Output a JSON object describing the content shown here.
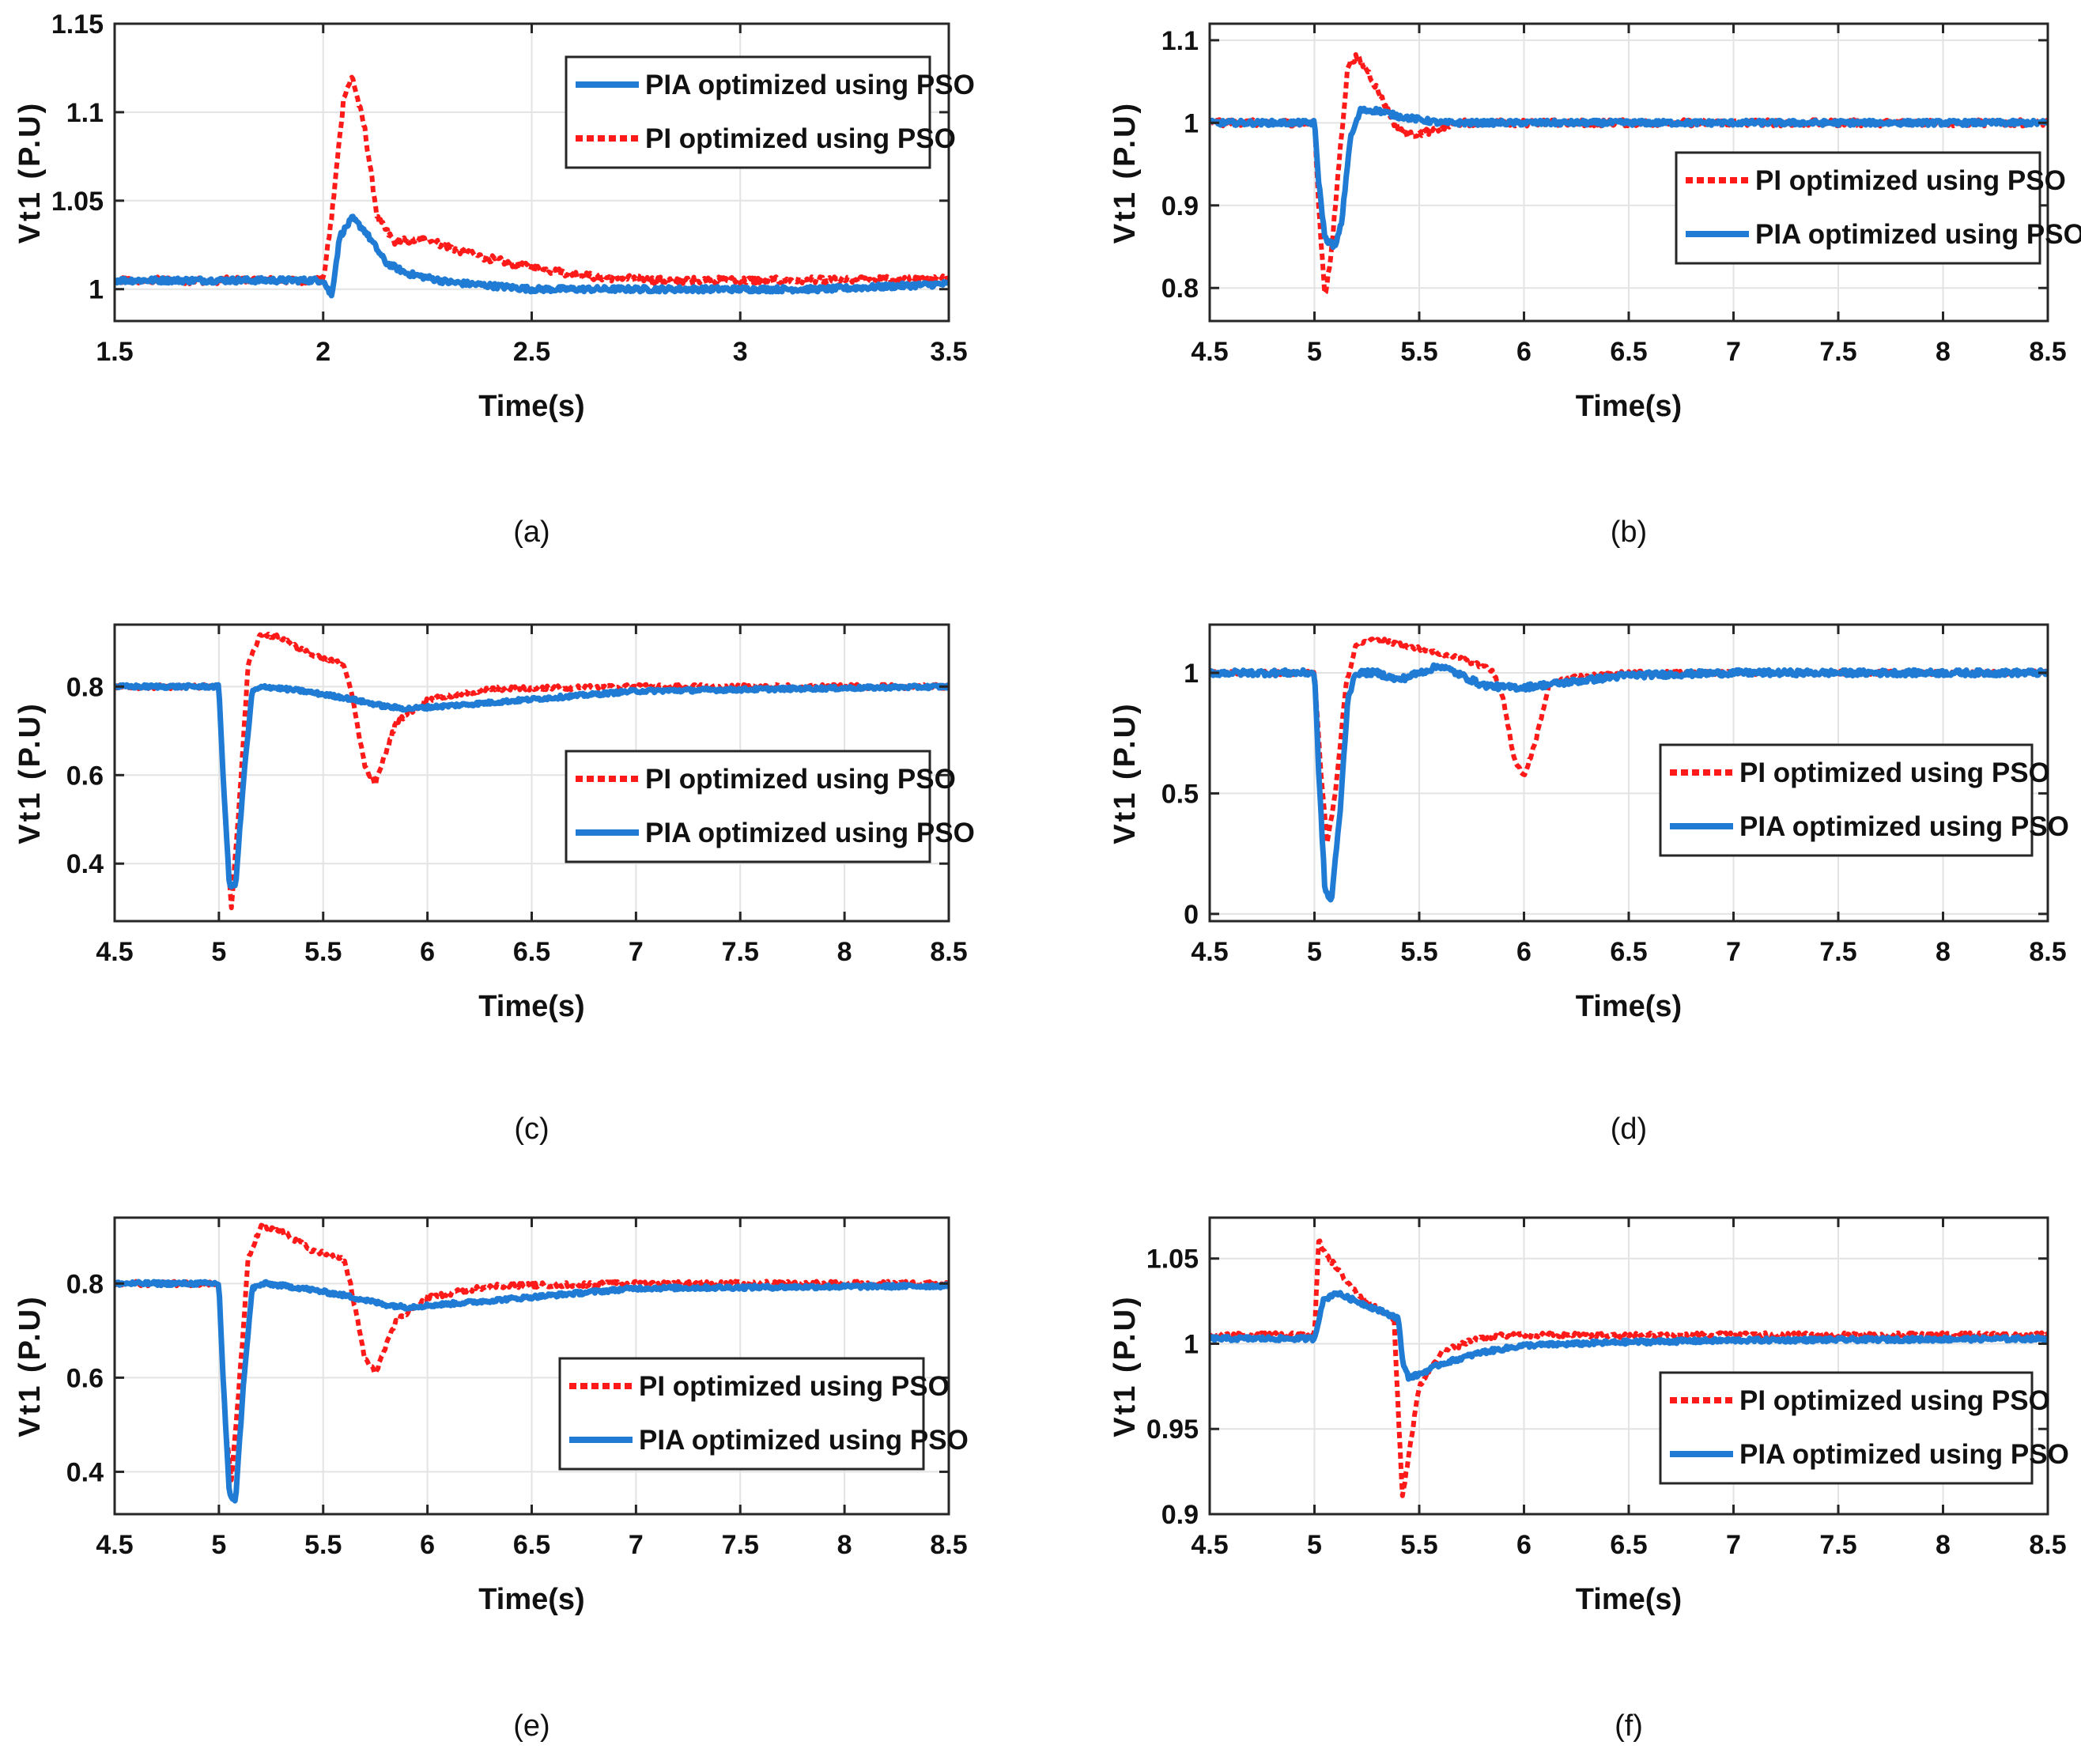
{
  "colors": {
    "pi": "#ff1a1a",
    "pia": "#1f7bd4",
    "grid": "#e3e3e3",
    "axes": "#262626"
  },
  "legend_labels": {
    "pia": "PIA optimized using PSO",
    "pi": "PI optimized using PSO"
  },
  "chart_data": [
    {
      "id": "a",
      "type": "line",
      "caption": "(a)",
      "xlabel": "Time(s)",
      "ylabel": "Vt1 (P.U)",
      "xlim": [
        1.5,
        3.5
      ],
      "ylim": [
        0.982,
        1.15
      ],
      "xticks": [
        1.5,
        2,
        2.5,
        3,
        3.5
      ],
      "xtick_labels": [
        "1.5",
        "2",
        "2.5",
        "3",
        "3.5"
      ],
      "yticks": [
        1,
        1.05,
        1.1,
        1.15
      ],
      "ytick_labels": [
        "1",
        "1.05",
        "1.1",
        "1.15"
      ],
      "legend_order": [
        "pia",
        "pi"
      ],
      "legend_position": "top-right",
      "series": [
        {
          "key": "pi",
          "name": "PI optimized using PSO",
          "style": "dotted",
          "noise": 0.002,
          "x": [
            1.5,
            2.0,
            2.02,
            2.05,
            2.07,
            2.1,
            2.13,
            2.17,
            2.25,
            2.35,
            2.5,
            2.65,
            2.8,
            3.0,
            3.2,
            3.5
          ],
          "y": [
            1.005,
            1.005,
            1.04,
            1.11,
            1.12,
            1.09,
            1.04,
            1.027,
            1.028,
            1.02,
            1.012,
            1.007,
            1.005,
            1.005,
            1.005,
            1.006
          ]
        },
        {
          "key": "pia",
          "name": "PIA optimized using PSO",
          "style": "solid",
          "noise": 0.0015,
          "x": [
            1.5,
            2.0,
            2.02,
            2.04,
            2.07,
            2.1,
            2.15,
            2.2,
            2.3,
            2.5,
            2.7,
            3.0,
            3.2,
            3.5
          ],
          "y": [
            1.005,
            1.005,
            0.996,
            1.03,
            1.04,
            1.033,
            1.015,
            1.009,
            1.004,
            1.0,
            1.0,
            1.0,
            1.0,
            1.003
          ]
        }
      ]
    },
    {
      "id": "b",
      "type": "line",
      "caption": "(b)",
      "xlabel": "Time(s)",
      "ylabel": "Vt1 (P.U)",
      "xlim": [
        4.5,
        8.5
      ],
      "ylim": [
        0.76,
        1.12
      ],
      "xticks": [
        4.5,
        5,
        5.5,
        6,
        6.5,
        7,
        7.5,
        8,
        8.5
      ],
      "xtick_labels": [
        "4.5",
        "5",
        "5.5",
        "6",
        "6.5",
        "7",
        "7.5",
        "8",
        "8.5"
      ],
      "yticks": [
        0.8,
        0.9,
        1,
        1.1
      ],
      "ytick_labels": [
        "0.8",
        "0.9",
        "1",
        "1.1"
      ],
      "legend_order": [
        "pi",
        "pia"
      ],
      "legend_position": "middle-right",
      "series": [
        {
          "key": "pi",
          "name": "PI optimized using PSO",
          "style": "dotted",
          "noise": 0.004,
          "x": [
            4.5,
            5.0,
            5.02,
            5.05,
            5.08,
            5.12,
            5.16,
            5.2,
            5.25,
            5.3,
            5.38,
            5.45,
            5.55,
            5.7,
            5.9,
            6.5,
            8.5
          ],
          "y": [
            1.0,
            1.0,
            0.9,
            0.79,
            0.84,
            0.96,
            1.07,
            1.08,
            1.065,
            1.04,
            1.0,
            0.985,
            0.99,
            1.0,
            1.0,
            1.0,
            1.0
          ]
        },
        {
          "key": "pia",
          "name": "PIA optimized using PSO",
          "style": "solid",
          "noise": 0.003,
          "x": [
            4.5,
            5.0,
            5.02,
            5.05,
            5.1,
            5.13,
            5.17,
            5.22,
            5.3,
            5.4,
            5.6,
            5.8,
            6.5,
            8.5
          ],
          "y": [
            1.0,
            1.0,
            0.93,
            0.86,
            0.85,
            0.88,
            0.98,
            1.015,
            1.015,
            1.008,
            1.0,
            1.0,
            1.0,
            1.0
          ]
        }
      ]
    },
    {
      "id": "c",
      "type": "line",
      "caption": "(c)",
      "xlabel": "Time(s)",
      "ylabel": "Vt1 (P.U)",
      "xlim": [
        4.5,
        8.5
      ],
      "ylim": [
        0.27,
        0.94
      ],
      "xticks": [
        4.5,
        5,
        5.5,
        6,
        6.5,
        7,
        7.5,
        8,
        8.5
      ],
      "xtick_labels": [
        "4.5",
        "5",
        "5.5",
        "6",
        "6.5",
        "7",
        "7.5",
        "8",
        "8.5"
      ],
      "yticks": [
        0.4,
        0.6,
        0.8
      ],
      "ytick_labels": [
        "0.4",
        "0.6",
        "0.8"
      ],
      "legend_order": [
        "pi",
        "pia"
      ],
      "legend_position": "lower-right",
      "series": [
        {
          "key": "pi",
          "name": "PI optimized using PSO",
          "style": "dotted",
          "noise": 0.005,
          "x": [
            4.5,
            5.0,
            5.03,
            5.06,
            5.1,
            5.14,
            5.2,
            5.3,
            5.45,
            5.6,
            5.63,
            5.7,
            5.75,
            5.85,
            6.0,
            6.3,
            7.0,
            8.5
          ],
          "y": [
            0.8,
            0.8,
            0.5,
            0.3,
            0.55,
            0.85,
            0.92,
            0.91,
            0.87,
            0.85,
            0.8,
            0.62,
            0.58,
            0.72,
            0.77,
            0.795,
            0.8,
            0.8
          ]
        },
        {
          "key": "pia",
          "name": "PIA optimized using PSO",
          "style": "solid",
          "noise": 0.004,
          "x": [
            4.5,
            5.0,
            5.02,
            5.05,
            5.08,
            5.12,
            5.16,
            5.22,
            5.4,
            5.6,
            5.8,
            5.9,
            6.2,
            7.0,
            8.5
          ],
          "y": [
            0.8,
            0.8,
            0.6,
            0.35,
            0.35,
            0.6,
            0.79,
            0.8,
            0.79,
            0.775,
            0.755,
            0.75,
            0.76,
            0.79,
            0.8
          ]
        }
      ]
    },
    {
      "id": "d",
      "type": "line",
      "caption": "(d)",
      "xlabel": "Time(s)",
      "ylabel": "Vt1 (P.U)",
      "xlim": [
        4.5,
        8.5
      ],
      "ylim": [
        -0.03,
        1.2
      ],
      "xticks": [
        4.5,
        5,
        5.5,
        6,
        6.5,
        7,
        7.5,
        8,
        8.5
      ],
      "xtick_labels": [
        "4.5",
        "5",
        "5.5",
        "6",
        "6.5",
        "7",
        "7.5",
        "8",
        "8.5"
      ],
      "yticks": [
        0,
        0.5,
        1
      ],
      "ytick_labels": [
        "0",
        "0.5",
        "1"
      ],
      "legend_order": [
        "pi",
        "pia"
      ],
      "legend_position": "lower-right",
      "series": [
        {
          "key": "pi",
          "name": "PI optimized using PSO",
          "style": "dotted",
          "noise": 0.008,
          "x": [
            4.5,
            5.0,
            5.03,
            5.06,
            5.1,
            5.15,
            5.2,
            5.3,
            5.5,
            5.7,
            5.85,
            5.9,
            5.95,
            6.0,
            6.05,
            6.12,
            6.2,
            6.5,
            8.5
          ],
          "y": [
            1.0,
            1.0,
            0.6,
            0.3,
            0.5,
            0.95,
            1.12,
            1.14,
            1.1,
            1.06,
            1.01,
            0.9,
            0.65,
            0.57,
            0.7,
            0.95,
            0.98,
            1.0,
            1.0
          ]
        },
        {
          "key": "pia",
          "name": "PIA optimized using PSO",
          "style": "solid",
          "noise": 0.012,
          "x": [
            4.5,
            5.0,
            5.02,
            5.05,
            5.08,
            5.12,
            5.16,
            5.2,
            5.3,
            5.4,
            5.5,
            5.6,
            5.7,
            5.8,
            5.9,
            6.0,
            6.2,
            6.5,
            7.0,
            8.5
          ],
          "y": [
            1.0,
            1.0,
            0.6,
            0.1,
            0.05,
            0.4,
            0.9,
            1.0,
            1.0,
            0.97,
            1.0,
            1.03,
            0.99,
            0.95,
            0.94,
            0.94,
            0.96,
            0.99,
            1.0,
            1.0
          ]
        }
      ]
    },
    {
      "id": "e",
      "type": "line",
      "caption": "(e)",
      "xlabel": "Time(s)",
      "ylabel": "Vt1 (P.U)",
      "xlim": [
        4.5,
        8.5
      ],
      "ylim": [
        0.31,
        0.94
      ],
      "xticks": [
        4.5,
        5,
        5.5,
        6,
        6.5,
        7,
        7.5,
        8,
        8.5
      ],
      "xtick_labels": [
        "4.5",
        "5",
        "5.5",
        "6",
        "6.5",
        "7",
        "7.5",
        "8",
        "8.5"
      ],
      "yticks": [
        0.4,
        0.6,
        0.8
      ],
      "ytick_labels": [
        "0.4",
        "0.6",
        "0.8"
      ],
      "legend_order": [
        "pi",
        "pia"
      ],
      "legend_position": "lower-right",
      "series": [
        {
          "key": "pi",
          "name": "PI optimized using PSO",
          "style": "dotted",
          "noise": 0.005,
          "x": [
            4.5,
            5.0,
            5.03,
            5.06,
            5.1,
            5.14,
            5.2,
            5.3,
            5.45,
            5.6,
            5.63,
            5.7,
            5.75,
            5.85,
            6.0,
            6.3,
            7.0,
            8.5
          ],
          "y": [
            0.8,
            0.8,
            0.5,
            0.38,
            0.6,
            0.85,
            0.92,
            0.91,
            0.87,
            0.85,
            0.8,
            0.64,
            0.61,
            0.72,
            0.77,
            0.795,
            0.8,
            0.8
          ]
        },
        {
          "key": "pia",
          "name": "PIA optimized using PSO",
          "style": "solid",
          "noise": 0.004,
          "x": [
            4.5,
            5.0,
            5.02,
            5.05,
            5.08,
            5.12,
            5.16,
            5.22,
            5.4,
            5.6,
            5.8,
            5.9,
            6.2,
            7.0,
            8.5
          ],
          "y": [
            0.8,
            0.8,
            0.6,
            0.35,
            0.34,
            0.6,
            0.79,
            0.8,
            0.79,
            0.775,
            0.755,
            0.75,
            0.76,
            0.79,
            0.795
          ]
        }
      ]
    },
    {
      "id": "f",
      "type": "line",
      "caption": "(f)",
      "xlabel": "Time(s)",
      "ylabel": "Vt1 (P.U)",
      "xlim": [
        4.5,
        8.5
      ],
      "ylim": [
        0.9,
        1.074
      ],
      "xticks": [
        4.5,
        5,
        5.5,
        6,
        6.5,
        7,
        7.5,
        8,
        8.5
      ],
      "xtick_labels": [
        "4.5",
        "5",
        "5.5",
        "6",
        "6.5",
        "7",
        "7.5",
        "8",
        "8.5"
      ],
      "yticks": [
        0.9,
        0.95,
        1,
        1.05
      ],
      "ytick_labels": [
        "0.9",
        "0.95",
        "1",
        "1.05"
      ],
      "legend_order": [
        "pi",
        "pia"
      ],
      "legend_position": "lower-right",
      "series": [
        {
          "key": "pi",
          "name": "PI optimized using PSO",
          "style": "dotted",
          "noise": 0.0015,
          "x": [
            4.5,
            5.0,
            5.02,
            5.1,
            5.2,
            5.3,
            5.38,
            5.4,
            5.42,
            5.45,
            5.5,
            5.6,
            5.8,
            6.0,
            8.5
          ],
          "y": [
            1.005,
            1.005,
            1.06,
            1.045,
            1.03,
            1.02,
            1.015,
            0.96,
            0.91,
            0.935,
            0.975,
            0.995,
            1.004,
            1.005,
            1.005
          ]
        },
        {
          "key": "pia",
          "name": "PIA optimized using PSO",
          "style": "solid",
          "noise": 0.0012,
          "x": [
            4.5,
            5.0,
            5.04,
            5.1,
            5.2,
            5.3,
            5.4,
            5.42,
            5.45,
            5.5,
            5.6,
            5.8,
            6.0,
            6.5,
            7.0,
            8.5
          ],
          "y": [
            1.003,
            1.003,
            1.025,
            1.03,
            1.025,
            1.02,
            1.015,
            0.99,
            0.98,
            0.982,
            0.988,
            0.995,
            0.999,
            1.001,
            1.002,
            1.003
          ]
        }
      ]
    }
  ]
}
